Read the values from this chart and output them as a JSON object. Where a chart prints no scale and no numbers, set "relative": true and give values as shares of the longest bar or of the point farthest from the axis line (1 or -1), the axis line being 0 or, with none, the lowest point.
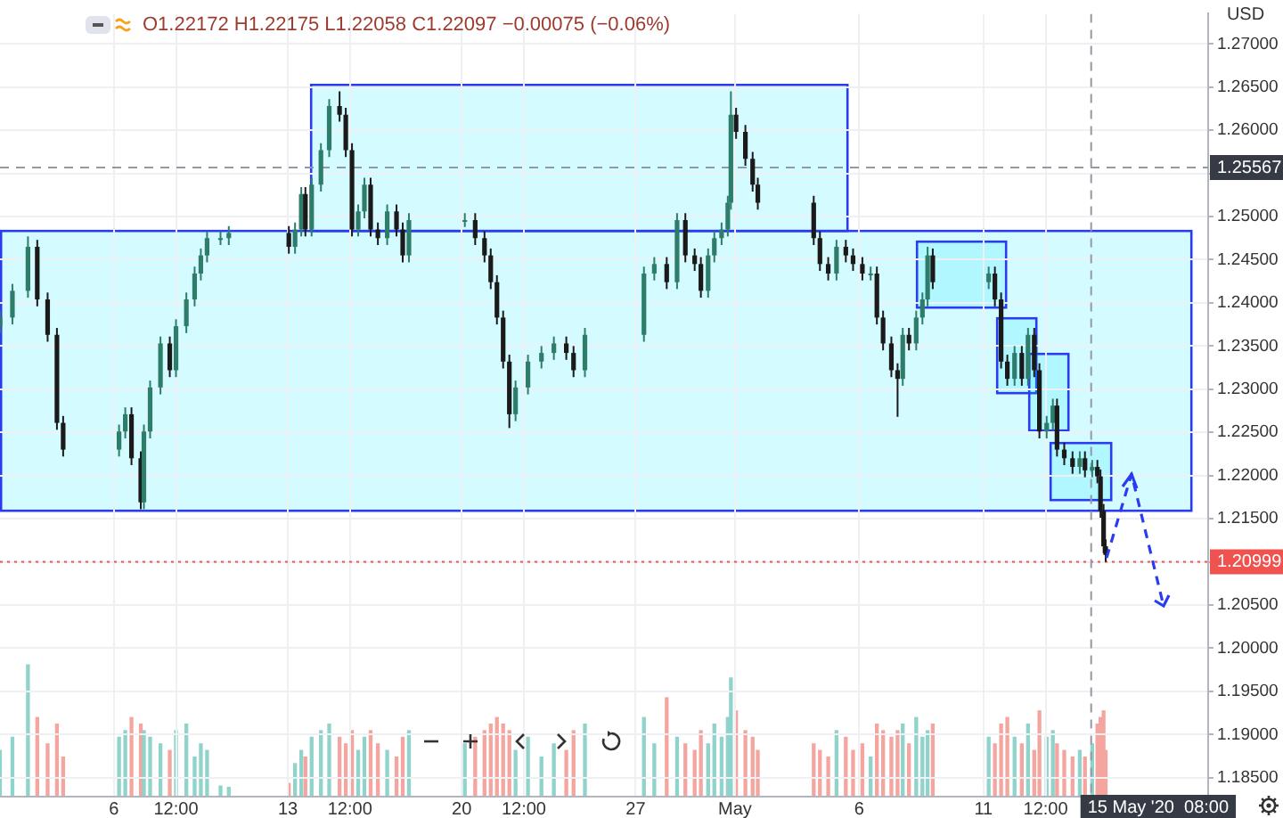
{
  "chart_data": [
    {
      "type": "candlestick",
      "subtitle": "O1.22172 H1.22175 L1.22058 C1.22097 −0.00075 (−0.06%)",
      "ylabel": "USD",
      "xlim": [
        "2020-04-01T10:00",
        "2020-05-20T01:00"
      ],
      "xticks": [
        {
          "value": "2020-04-06",
          "label": "6"
        },
        {
          "value": "2020-04-08T12:00",
          "label": "12:00"
        },
        {
          "value": "2020-04-13",
          "label": "13"
        },
        {
          "value": "2020-04-15T12:00",
          "label": "12:00"
        },
        {
          "value": "2020-04-20",
          "label": "20"
        },
        {
          "value": "2020-04-22T12:00",
          "label": "12:00"
        },
        {
          "value": "2020-04-27",
          "label": "27"
        },
        {
          "value": "2020-05-01",
          "label": "May"
        },
        {
          "value": "2020-05-06",
          "label": "6"
        },
        {
          "value": "2020-05-11",
          "label": "11"
        },
        {
          "value": "2020-05-13T12:00",
          "label": "12:00"
        }
      ],
      "ylim": [
        1.1828,
        1.2735
      ],
      "yticks": [
        {
          "value": 1.185,
          "label": "1.18500"
        },
        {
          "value": 1.19,
          "label": "1.19000"
        },
        {
          "value": 1.195,
          "label": "1.19500"
        },
        {
          "value": 1.2,
          "label": "1.20000"
        },
        {
          "value": 1.205,
          "label": "1.20500"
        },
        {
          "value": 1.21,
          "label": null
        },
        {
          "value": 1.215,
          "label": "1.21500"
        },
        {
          "value": 1.22,
          "label": "1.22000"
        },
        {
          "value": 1.225,
          "label": "1.22500"
        },
        {
          "value": 1.23,
          "label": "1.23000"
        },
        {
          "value": 1.235,
          "label": "1.23500"
        },
        {
          "value": 1.24,
          "label": "1.24000"
        },
        {
          "value": 1.245,
          "label": "1.24500"
        },
        {
          "value": 1.25,
          "label": "1.25000"
        },
        {
          "value": 1.255,
          "label": null
        },
        {
          "value": 1.26,
          "label": "1.26000"
        },
        {
          "value": 1.265,
          "label": "1.26500"
        },
        {
          "value": 1.27,
          "label": "1.27000"
        }
      ],
      "grid": true,
      "legend": false,
      "x": [
        "2020-04-01T10:00",
        "2020-04-01T22:00",
        "2020-04-02T13:00",
        "2020-04-02T22:00",
        "2020-04-03T08:00",
        "2020-04-03T17:00",
        "2020-04-03T23:00",
        "2020-04-06T05:00",
        "2020-04-06T11:00",
        "2020-04-06T17:00",
        "2020-04-07T02:00",
        "2020-04-07T05:00",
        "2020-04-07T11:00",
        "2020-04-07T21:00",
        "2020-04-08T06:00",
        "2020-04-08T12:00",
        "2020-04-08T22:00",
        "2020-04-09T06:00",
        "2020-04-09T12:00",
        "2020-04-09T18:00",
        "2020-04-10T07:00",
        "2020-04-10T15:00",
        "2020-04-13T01:00",
        "2020-04-13T07:00",
        "2020-04-13T13:00",
        "2020-04-13T17:00",
        "2020-04-13T23:00",
        "2020-04-14T08:00",
        "2020-04-14T16:00",
        "2020-04-15T02:00",
        "2020-04-15T08:00",
        "2020-04-15T14:00",
        "2020-04-15T20:00",
        "2020-04-16T02:00",
        "2020-04-16T08:00",
        "2020-04-16T15:00",
        "2020-04-17T00:00",
        "2020-04-17T09:00",
        "2020-04-17T15:00",
        "2020-04-17T21:00",
        "2020-04-20T03:00",
        "2020-04-20T13:00",
        "2020-04-20T22:00",
        "2020-04-21T04:00",
        "2020-04-21T10:00",
        "2020-04-21T16:00",
        "2020-04-21T22:00",
        "2020-04-22T04:00",
        "2020-04-22T16:00",
        "2020-04-23T05:00",
        "2020-04-23T17:00",
        "2020-04-24T05:00",
        "2020-04-24T12:00",
        "2020-04-24T23:00",
        "2020-04-27T08:00",
        "2020-04-27T18:00",
        "2020-04-28T06:00",
        "2020-04-28T16:00",
        "2020-04-29T00:00",
        "2020-04-29T09:00",
        "2020-04-29T15:00",
        "2020-04-29T22:00",
        "2020-04-30T04:00",
        "2020-04-30T11:00",
        "2020-04-30T17:00",
        "2020-04-30T20:00",
        "2020-05-01T01:00",
        "2020-05-01T10:00",
        "2020-05-01T17:00",
        "2020-05-01T22:00",
        "2020-05-04T04:00",
        "2020-05-04T10:00",
        "2020-05-04T18:00",
        "2020-05-05T02:00",
        "2020-05-05T11:00",
        "2020-05-05T18:00",
        "2020-05-06T03:00",
        "2020-05-06T11:00",
        "2020-05-06T17:00",
        "2020-05-06T23:00",
        "2020-05-07T07:00",
        "2020-05-07T13:00",
        "2020-05-07T18:00",
        "2020-05-08T00:00",
        "2020-05-08T07:00",
        "2020-05-08T13:00",
        "2020-05-08T18:00",
        "2020-05-08T23:00",
        "2020-05-11T05:00",
        "2020-05-11T11:00",
        "2020-05-11T17:00",
        "2020-05-11T23:00",
        "2020-05-12T06:00",
        "2020-05-12T13:00",
        "2020-05-12T19:00",
        "2020-05-13T01:00",
        "2020-05-13T06:00",
        "2020-05-13T13:00",
        "2020-05-13T19:00",
        "2020-05-13T23:00",
        "2020-05-14T06:00",
        "2020-05-14T14:00",
        "2020-05-14T21:00",
        "2020-05-15T02:00",
        "2020-05-15T09:00",
        "2020-05-15T14:00",
        "2020-05-15T17:00",
        "2020-05-15T20:00",
        "2020-05-15T22:00"
      ],
      "series": [
        {
          "type": "candlestick",
          "colors": [
            "#2e7d6b",
            "#2e7d6b",
            "#2e7d6b",
            "#1a1a1a",
            "#1a1a1a",
            "#1a1a1a",
            "#1a1a1a",
            "#2e7d6b",
            "#2e7d6b",
            "#1a1a1a",
            "#1a1a1a",
            "#2e7d6b",
            "#2e7d6b",
            "#2e7d6b",
            "#1a1a1a",
            "#2e7d6b",
            "#2e7d6b",
            "#2e7d6b",
            "#2e7d6b",
            "#2e7d6b",
            "#2e7d6b",
            "#2e7d6b",
            "#1a1a1a",
            "#2e7d6b",
            "#2e7d6b",
            "#1a1a1a",
            "#2e7d6b",
            "#2e7d6b",
            "#2e7d6b",
            "#1a1a1a",
            "#1a1a1a",
            "#1a1a1a",
            "#2e7d6b",
            "#2e7d6b",
            "#1a1a1a",
            "#1a1a1a",
            "#2e7d6b",
            "#1a1a1a",
            "#1a1a1a",
            "#2e7d6b",
            "#2e7d6b",
            "#1a1a1a",
            "#1a1a1a",
            "#1a1a1a",
            "#1a1a1a",
            "#1a1a1a",
            "#1a1a1a",
            "#2e7d6b",
            "#2e7d6b",
            "#2e7d6b",
            "#2e7d6b",
            "#1a1a1a",
            "#1a1a1a",
            "#2e7d6b",
            "#2e7d6b",
            "#2e7d6b",
            "#1a1a1a",
            "#2e7d6b",
            "#1a1a1a",
            "#1a1a1a",
            "#1a1a1a",
            "#2e7d6b",
            "#2e7d6b",
            "#2e7d6b",
            "#2e7d6b",
            "#2e7d6b",
            "#1a1a1a",
            "#1a1a1a",
            "#1a1a1a",
            "#1a1a1a",
            "#1a1a1a",
            "#1a1a1a",
            "#1a1a1a",
            "#2e7d6b",
            "#1a1a1a",
            "#1a1a1a",
            "#1a1a1a",
            "#2e7d6b",
            "#1a1a1a",
            "#1a1a1a",
            "#1a1a1a",
            "#1a1a1a",
            "#2e7d6b",
            "#1a1a1a",
            "#2e7d6b",
            "#2e7d6b",
            "#2e7d6b",
            "#1a1a1a",
            "#2e7d6b",
            "#1a1a1a",
            "#1a1a1a",
            "#1a1a1a",
            "#2e7d6b",
            "#1a1a1a",
            "#2e7d6b",
            "#1a1a1a",
            "#1a1a1a",
            "#2e7d6b",
            "#2e7d6b",
            "#1a1a1a",
            "#1a1a1a",
            "#1a1a1a",
            "#2e7d6b",
            "#1a1a1a",
            "#2e7d6b",
            "#1a1a1a",
            "#1a1a1a",
            "#1a1a1a",
            "#1a1a1a"
          ],
          "ohlc": [
            [
              1.2373,
              1.2391,
              1.2365,
              1.2383
            ],
            [
              1.2383,
              1.2422,
              1.2375,
              1.2414
            ],
            [
              1.2414,
              1.2477,
              1.2406,
              1.2465
            ],
            [
              1.2465,
              1.2473,
              1.2396,
              1.2404
            ],
            [
              1.2404,
              1.2412,
              1.2355,
              1.2363
            ],
            [
              1.2363,
              1.2371,
              1.2253,
              1.2261
            ],
            [
              1.2261,
              1.2269,
              1.2222,
              1.223
            ],
            [
              1.223,
              1.2259,
              1.2222,
              1.2251
            ],
            [
              1.2251,
              1.2279,
              1.2243,
              1.2271
            ],
            [
              1.2271,
              1.2279,
              1.2212,
              1.222
            ],
            [
              1.222,
              1.2228,
              1.2161,
              1.2169
            ],
            [
              1.2169,
              1.2259,
              1.2161,
              1.2251
            ],
            [
              1.2251,
              1.231,
              1.2243,
              1.2302
            ],
            [
              1.2302,
              1.2361,
              1.2294,
              1.2353
            ],
            [
              1.2353,
              1.2361,
              1.2314,
              1.2322
            ],
            [
              1.2322,
              1.2381,
              1.2314,
              1.2373
            ],
            [
              1.2373,
              1.2412,
              1.2365,
              1.2404
            ],
            [
              1.2404,
              1.2442,
              1.2396,
              1.2434
            ],
            [
              1.2434,
              1.2463,
              1.2426,
              1.2455
            ],
            [
              1.2455,
              1.2483,
              1.2447,
              1.2475
            ],
            [
              1.2475,
              1.2483,
              1.2467,
              1.2475
            ],
            [
              1.2475,
              1.2489,
              1.2467,
              1.2481
            ],
            [
              1.2481,
              1.2489,
              1.2457,
              1.2465
            ],
            [
              1.2465,
              1.2493,
              1.2457,
              1.2485
            ],
            [
              1.2485,
              1.2534,
              1.2477,
              1.2526
            ],
            [
              1.2526,
              1.2534,
              1.2477,
              1.2485
            ],
            [
              1.2485,
              1.2545,
              1.2477,
              1.2537
            ],
            [
              1.2537,
              1.2585,
              1.2529,
              1.2577
            ],
            [
              1.2577,
              1.2636,
              1.2569,
              1.2628
            ],
            [
              1.2628,
              1.2645,
              1.261,
              1.2618
            ],
            [
              1.2618,
              1.2626,
              1.2569,
              1.2577
            ],
            [
              1.2577,
              1.2585,
              1.2477,
              1.2485
            ],
            [
              1.2485,
              1.2514,
              1.2477,
              1.2506
            ],
            [
              1.2506,
              1.2545,
              1.2498,
              1.2537
            ],
            [
              1.2537,
              1.2545,
              1.2477,
              1.2485
            ],
            [
              1.2485,
              1.2493,
              1.2467,
              1.2475
            ],
            [
              1.2475,
              1.2514,
              1.2467,
              1.2506
            ],
            [
              1.2506,
              1.2514,
              1.2477,
              1.2485
            ],
            [
              1.2485,
              1.2493,
              1.2447,
              1.2455
            ],
            [
              1.2455,
              1.2504,
              1.2447,
              1.2496
            ],
            [
              1.2496,
              1.2504,
              1.2488,
              1.2496
            ],
            [
              1.2496,
              1.2504,
              1.2467,
              1.2475
            ],
            [
              1.2475,
              1.2483,
              1.2447,
              1.2455
            ],
            [
              1.2455,
              1.2463,
              1.2416,
              1.2424
            ],
            [
              1.2424,
              1.2432,
              1.2375,
              1.2383
            ],
            [
              1.2383,
              1.2391,
              1.2324,
              1.2332
            ],
            [
              1.2332,
              1.234,
              1.2255,
              1.2271
            ],
            [
              1.2271,
              1.231,
              1.2263,
              1.2302
            ],
            [
              1.2302,
              1.234,
              1.2294,
              1.2332
            ],
            [
              1.2332,
              1.235,
              1.2324,
              1.2342
            ],
            [
              1.2342,
              1.2361,
              1.2334,
              1.2353
            ],
            [
              1.2353,
              1.2361,
              1.2334,
              1.2342
            ],
            [
              1.2342,
              1.235,
              1.2314,
              1.2322
            ],
            [
              1.2322,
              1.2371,
              1.2314,
              1.2363
            ],
            [
              1.2363,
              1.2442,
              1.2355,
              1.2434
            ],
            [
              1.2434,
              1.2453,
              1.2426,
              1.2445
            ],
            [
              1.2445,
              1.2453,
              1.2416,
              1.2424
            ],
            [
              1.2424,
              1.2504,
              1.2416,
              1.2496
            ],
            [
              1.2496,
              1.2504,
              1.2447,
              1.2455
            ],
            [
              1.2455,
              1.2463,
              1.2437,
              1.2445
            ],
            [
              1.2445,
              1.2453,
              1.2406,
              1.2414
            ],
            [
              1.2414,
              1.2463,
              1.2406,
              1.2455
            ],
            [
              1.2455,
              1.2483,
              1.2447,
              1.2475
            ],
            [
              1.2475,
              1.2493,
              1.2467,
              1.2485
            ],
            [
              1.2485,
              1.2524,
              1.2477,
              1.2516
            ],
            [
              1.2516,
              1.2645,
              1.2508,
              1.2618
            ],
            [
              1.2618,
              1.2626,
              1.259,
              1.2598
            ],
            [
              1.2598,
              1.2606,
              1.2559,
              1.2567
            ],
            [
              1.2567,
              1.2575,
              1.2529,
              1.2537
            ],
            [
              1.2537,
              1.2545,
              1.2508,
              1.2516
            ],
            [
              1.2516,
              1.2524,
              1.2467,
              1.2475
            ],
            [
              1.2475,
              1.2483,
              1.2437,
              1.2445
            ],
            [
              1.2445,
              1.2453,
              1.2426,
              1.2434
            ],
            [
              1.2434,
              1.2473,
              1.2426,
              1.2465
            ],
            [
              1.2465,
              1.2473,
              1.2447,
              1.2455
            ],
            [
              1.2455,
              1.2463,
              1.2437,
              1.2445
            ],
            [
              1.2445,
              1.2453,
              1.2426,
              1.2434
            ],
            [
              1.2434,
              1.2442,
              1.2426,
              1.2434
            ],
            [
              1.2434,
              1.2442,
              1.2375,
              1.2383
            ],
            [
              1.2383,
              1.2391,
              1.2345,
              1.2353
            ],
            [
              1.2353,
              1.2361,
              1.2314,
              1.2322
            ],
            [
              1.2322,
              1.233,
              1.2268,
              1.2312
            ],
            [
              1.2312,
              1.2371,
              1.2304,
              1.2363
            ],
            [
              1.2363,
              1.2371,
              1.2345,
              1.2353
            ],
            [
              1.2353,
              1.2391,
              1.2345,
              1.2383
            ],
            [
              1.2383,
              1.2412,
              1.2375,
              1.2404
            ],
            [
              1.2404,
              1.2465,
              1.2396,
              1.2455
            ],
            [
              1.2455,
              1.2463,
              1.2416,
              1.2424
            ],
            [
              1.2424,
              1.2442,
              1.2416,
              1.2434
            ],
            [
              1.2434,
              1.2442,
              1.2396,
              1.2404
            ],
            [
              1.2404,
              1.2412,
              1.2324,
              1.2332
            ],
            [
              1.2332,
              1.234,
              1.2304,
              1.2312
            ],
            [
              1.2312,
              1.235,
              1.2304,
              1.2342
            ],
            [
              1.2342,
              1.235,
              1.2304,
              1.2312
            ],
            [
              1.2312,
              1.2371,
              1.2304,
              1.2363
            ],
            [
              1.2363,
              1.2371,
              1.2314,
              1.2322
            ],
            [
              1.2322,
              1.233,
              1.2243,
              1.2251
            ],
            [
              1.2251,
              1.2269,
              1.2243,
              1.2261
            ],
            [
              1.2261,
              1.2289,
              1.2253,
              1.2281
            ],
            [
              1.2281,
              1.2289,
              1.2222,
              1.223
            ],
            [
              1.223,
              1.2238,
              1.2212,
              1.222
            ],
            [
              1.222,
              1.2228,
              1.2202,
              1.221
            ],
            [
              1.221,
              1.2228,
              1.2202,
              1.222
            ],
            [
              1.222,
              1.2228,
              1.2198,
              1.2206
            ],
            [
              1.2206,
              1.2218,
              1.2198,
              1.221
            ],
            [
              1.221,
              1.2218,
              1.2191,
              1.2199
            ],
            [
              1.2199,
              1.2207,
              1.2151,
              1.2159
            ],
            [
              1.2159,
              1.2167,
              1.211,
              1.2118
            ],
            [
              1.2118,
              1.2126,
              1.21,
              1.2108
            ]
          ]
        }
      ],
      "ref_lines": [
        {
          "axis": "y",
          "value": 1.25567,
          "label": "1.25567",
          "color": "#9598a1",
          "line_style": "dashed"
        },
        {
          "axis": "y",
          "value": 1.20999,
          "label": "1.20999",
          "color": "#ef5350",
          "line_style": "dotted"
        },
        {
          "axis": "x",
          "value": "2020-05-15T08:00",
          "label": "15 May '20  08:00",
          "color": "#9598a1",
          "line_style": "dashed"
        }
      ]
    },
    {
      "type": "bar",
      "relative": true,
      "tick_labels": false,
      "xlim": [
        "2020-04-01T10:00",
        "2020-05-20T01:00"
      ],
      "x": [
        "2020-04-01T10:00",
        "2020-04-01T22:00",
        "2020-04-02T13:00",
        "2020-04-02T22:00",
        "2020-04-03T08:00",
        "2020-04-03T17:00",
        "2020-04-03T23:00",
        "2020-04-06T05:00",
        "2020-04-06T11:00",
        "2020-04-06T17:00",
        "2020-04-07T02:00",
        "2020-04-07T05:00",
        "2020-04-07T11:00",
        "2020-04-07T21:00",
        "2020-04-08T06:00",
        "2020-04-08T12:00",
        "2020-04-08T22:00",
        "2020-04-09T06:00",
        "2020-04-09T12:00",
        "2020-04-09T18:00",
        "2020-04-10T07:00",
        "2020-04-10T15:00",
        "2020-04-13T01:00",
        "2020-04-13T07:00",
        "2020-04-13T13:00",
        "2020-04-13T17:00",
        "2020-04-13T23:00",
        "2020-04-14T08:00",
        "2020-04-14T16:00",
        "2020-04-15T02:00",
        "2020-04-15T08:00",
        "2020-04-15T14:00",
        "2020-04-15T20:00",
        "2020-04-16T02:00",
        "2020-04-16T08:00",
        "2020-04-16T15:00",
        "2020-04-17T00:00",
        "2020-04-17T09:00",
        "2020-04-17T15:00",
        "2020-04-17T21:00",
        "2020-04-20T03:00",
        "2020-04-20T13:00",
        "2020-04-20T22:00",
        "2020-04-21T04:00",
        "2020-04-21T10:00",
        "2020-04-21T16:00",
        "2020-04-21T22:00",
        "2020-04-22T04:00",
        "2020-04-22T16:00",
        "2020-04-23T05:00",
        "2020-04-23T17:00",
        "2020-04-24T05:00",
        "2020-04-24T12:00",
        "2020-04-24T23:00",
        "2020-04-27T08:00",
        "2020-04-27T18:00",
        "2020-04-28T06:00",
        "2020-04-28T16:00",
        "2020-04-29T00:00",
        "2020-04-29T09:00",
        "2020-04-29T15:00",
        "2020-04-29T22:00",
        "2020-04-30T04:00",
        "2020-04-30T11:00",
        "2020-04-30T17:00",
        "2020-04-30T20:00",
        "2020-05-01T01:00",
        "2020-05-01T10:00",
        "2020-05-01T17:00",
        "2020-05-01T22:00",
        "2020-05-04T04:00",
        "2020-05-04T10:00",
        "2020-05-04T18:00",
        "2020-05-05T02:00",
        "2020-05-05T11:00",
        "2020-05-05T18:00",
        "2020-05-06T03:00",
        "2020-05-06T11:00",
        "2020-05-06T17:00",
        "2020-05-06T23:00",
        "2020-05-07T07:00",
        "2020-05-07T13:00",
        "2020-05-07T18:00",
        "2020-05-08T00:00",
        "2020-05-08T07:00",
        "2020-05-08T13:00",
        "2020-05-08T18:00",
        "2020-05-08T23:00",
        "2020-05-11T05:00",
        "2020-05-11T11:00",
        "2020-05-11T17:00",
        "2020-05-11T23:00",
        "2020-05-12T06:00",
        "2020-05-12T13:00",
        "2020-05-12T19:00",
        "2020-05-13T01:00",
        "2020-05-13T06:00",
        "2020-05-13T13:00",
        "2020-05-13T19:00",
        "2020-05-13T23:00",
        "2020-05-14T06:00",
        "2020-05-14T14:00",
        "2020-05-14T21:00",
        "2020-05-15T02:00",
        "2020-05-15T09:00",
        "2020-05-15T14:00",
        "2020-05-15T17:00",
        "2020-05-15T20:00",
        "2020-05-15T22:00"
      ],
      "values": [
        0.35,
        0.45,
        1.0,
        0.6,
        0.4,
        0.55,
        0.3,
        0.45,
        0.5,
        0.6,
        0.55,
        0.5,
        0.45,
        0.4,
        0.35,
        0.5,
        0.55,
        0.3,
        0.4,
        0.35,
        0.08,
        0.07,
        0.1,
        0.25,
        0.35,
        0.3,
        0.45,
        0.5,
        0.55,
        0.45,
        0.4,
        0.5,
        0.35,
        0.45,
        0.5,
        0.4,
        0.35,
        0.3,
        0.45,
        0.5,
        0.4,
        0.45,
        0.5,
        0.55,
        0.6,
        0.55,
        0.5,
        0.35,
        0.45,
        0.3,
        0.4,
        0.35,
        0.5,
        0.55,
        0.6,
        0.4,
        0.75,
        0.45,
        0.4,
        0.35,
        0.5,
        0.4,
        0.55,
        0.45,
        0.6,
        0.9,
        0.65,
        0.5,
        0.45,
        0.35,
        0.4,
        0.35,
        0.3,
        0.5,
        0.45,
        0.35,
        0.4,
        0.3,
        0.55,
        0.5,
        0.45,
        0.5,
        0.55,
        0.4,
        0.6,
        0.45,
        0.5,
        0.55,
        0.45,
        0.4,
        0.55,
        0.6,
        0.45,
        0.4,
        0.55,
        0.35,
        0.65,
        0.45,
        0.5,
        0.4,
        0.35,
        0.3,
        0.35,
        0.3,
        0.4,
        0.55,
        0.6,
        0.65,
        0.35
      ],
      "colors": [
        "#8fd3cb",
        "#8fd3cb",
        "#8fd3cb",
        "#f5a59f",
        "#f5a59f",
        "#f5a59f",
        "#f5a59f",
        "#8fd3cb",
        "#8fd3cb",
        "#f5a59f",
        "#f5a59f",
        "#8fd3cb",
        "#8fd3cb",
        "#8fd3cb",
        "#f5a59f",
        "#8fd3cb",
        "#8fd3cb",
        "#8fd3cb",
        "#8fd3cb",
        "#8fd3cb",
        "#8fd3cb",
        "#8fd3cb",
        "#f5a59f",
        "#8fd3cb",
        "#8fd3cb",
        "#f5a59f",
        "#8fd3cb",
        "#8fd3cb",
        "#8fd3cb",
        "#f5a59f",
        "#f5a59f",
        "#f5a59f",
        "#8fd3cb",
        "#8fd3cb",
        "#f5a59f",
        "#f5a59f",
        "#8fd3cb",
        "#f5a59f",
        "#f5a59f",
        "#8fd3cb",
        "#8fd3cb",
        "#f5a59f",
        "#f5a59f",
        "#f5a59f",
        "#f5a59f",
        "#f5a59f",
        "#f5a59f",
        "#8fd3cb",
        "#8fd3cb",
        "#8fd3cb",
        "#8fd3cb",
        "#f5a59f",
        "#f5a59f",
        "#8fd3cb",
        "#8fd3cb",
        "#8fd3cb",
        "#f5a59f",
        "#8fd3cb",
        "#f5a59f",
        "#f5a59f",
        "#f5a59f",
        "#8fd3cb",
        "#8fd3cb",
        "#8fd3cb",
        "#8fd3cb",
        "#8fd3cb",
        "#f5a59f",
        "#f5a59f",
        "#f5a59f",
        "#f5a59f",
        "#f5a59f",
        "#f5a59f",
        "#f5a59f",
        "#8fd3cb",
        "#f5a59f",
        "#f5a59f",
        "#f5a59f",
        "#8fd3cb",
        "#f5a59f",
        "#f5a59f",
        "#f5a59f",
        "#f5a59f",
        "#8fd3cb",
        "#f5a59f",
        "#8fd3cb",
        "#8fd3cb",
        "#8fd3cb",
        "#f5a59f",
        "#8fd3cb",
        "#f5a59f",
        "#f5a59f",
        "#f5a59f",
        "#8fd3cb",
        "#f5a59f",
        "#8fd3cb",
        "#f5a59f",
        "#f5a59f",
        "#8fd3cb",
        "#8fd3cb",
        "#f5a59f",
        "#f5a59f",
        "#f5a59f",
        "#8fd3cb",
        "#f5a59f",
        "#8fd3cb",
        "#f5a59f",
        "#f5a59f",
        "#f5a59f",
        "#f5a59f"
      ]
    }
  ]
}
